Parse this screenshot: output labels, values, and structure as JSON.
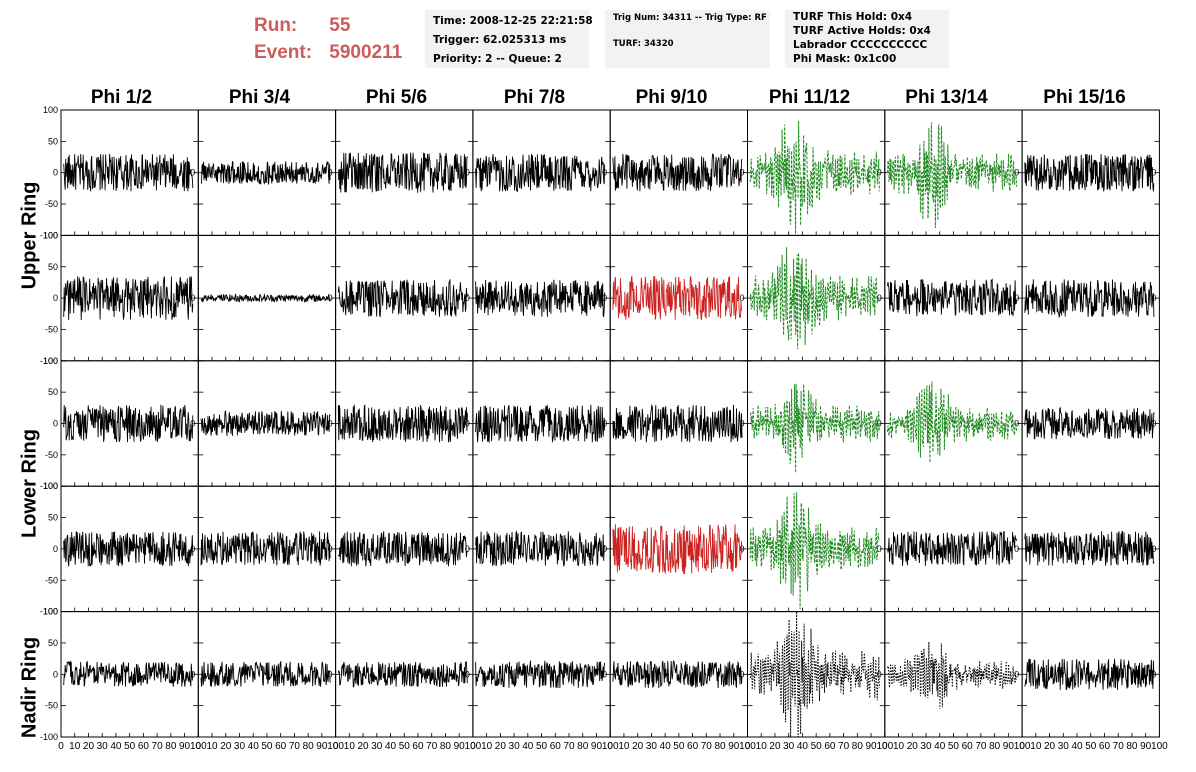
{
  "run_label": "Run:",
  "run_value": "55",
  "event_label": "Event:",
  "event_value": "5900211",
  "info_time": "Time: 2008-12-25 22:21:58",
  "info_trigger": "Trigger: 62.025313 ms",
  "info_priority": "Priority: 2 -- Queue: 2",
  "info_trignum": "Trig Num: 34311 -- Trig Type: RF",
  "info_turf": "TURF: 34320",
  "info_hold": "TURF This Hold: 0x4",
  "info_active_holds": "TURF Active Holds: 0x4",
  "info_labrador": "Labrador CCCCCCCCCC",
  "info_phimask": "Phi Mask: 0x1c00",
  "columns": [
    "Phi 1/2",
    "Phi 3/4",
    "Phi 5/6",
    "Phi 7/8",
    "Phi 9/10",
    "Phi 11/12",
    "Phi 13/14",
    "Phi 15/16"
  ],
  "rows": [
    "Upper Ring",
    "Lower Ring",
    "Nadir Ring"
  ],
  "colors": {
    "default": "#000000",
    "red": "#cc2222",
    "green": "#228b22",
    "title": "#cd5c5c",
    "panel_bg": "#f2f2f2"
  },
  "chart_data": {
    "type": "line",
    "xlim": [
      0,
      100
    ],
    "ylim": [
      -100,
      100
    ],
    "yticks": [
      100,
      50,
      0,
      -50,
      -100
    ],
    "xtick_labels": [
      "0",
      "10",
      "20",
      "30",
      "40",
      "50",
      "60",
      "70",
      "80",
      "90",
      "100"
    ],
    "panels": [
      {
        "row": 0,
        "col": 0,
        "style": "solid",
        "color": "default",
        "amplitude": 30
      },
      {
        "row": 0,
        "col": 1,
        "style": "solid",
        "color": "default",
        "amplitude": 18
      },
      {
        "row": 0,
        "col": 2,
        "style": "solid",
        "color": "default",
        "amplitude": 32
      },
      {
        "row": 0,
        "col": 3,
        "style": "solid",
        "color": "default",
        "amplitude": 30
      },
      {
        "row": 0,
        "col": 4,
        "style": "solid",
        "color": "default",
        "amplitude": 30
      },
      {
        "row": 0,
        "col": 5,
        "style": "dashed",
        "color": "green",
        "amplitude": 70
      },
      {
        "row": 0,
        "col": 6,
        "style": "dashed",
        "color": "green",
        "amplitude": 65
      },
      {
        "row": 0,
        "col": 7,
        "style": "solid",
        "color": "default",
        "amplitude": 30
      },
      {
        "row": 1,
        "col": 0,
        "style": "solid",
        "color": "default",
        "amplitude": 35
      },
      {
        "row": 1,
        "col": 1,
        "style": "solid",
        "color": "default",
        "amplitude": 6
      },
      {
        "row": 1,
        "col": 2,
        "style": "solid",
        "color": "default",
        "amplitude": 30
      },
      {
        "row": 1,
        "col": 3,
        "style": "solid",
        "color": "default",
        "amplitude": 30
      },
      {
        "row": 1,
        "col": 4,
        "style": "solid",
        "color": "red",
        "amplitude": 35
      },
      {
        "row": 1,
        "col": 5,
        "style": "dashed",
        "color": "green",
        "amplitude": 75
      },
      {
        "row": 1,
        "col": 6,
        "style": "solid",
        "color": "default",
        "amplitude": 30
      },
      {
        "row": 1,
        "col": 7,
        "style": "solid",
        "color": "default",
        "amplitude": 30
      },
      {
        "row": 2,
        "col": 0,
        "style": "solid",
        "color": "default",
        "amplitude": 30
      },
      {
        "row": 2,
        "col": 1,
        "style": "solid",
        "color": "default",
        "amplitude": 20
      },
      {
        "row": 2,
        "col": 2,
        "style": "solid",
        "color": "default",
        "amplitude": 30
      },
      {
        "row": 2,
        "col": 3,
        "style": "solid",
        "color": "default",
        "amplitude": 30
      },
      {
        "row": 2,
        "col": 4,
        "style": "solid",
        "color": "default",
        "amplitude": 30
      },
      {
        "row": 2,
        "col": 5,
        "style": "dashed",
        "color": "green",
        "amplitude": 60
      },
      {
        "row": 2,
        "col": 6,
        "style": "dashed",
        "color": "green",
        "amplitude": 55
      },
      {
        "row": 2,
        "col": 7,
        "style": "solid",
        "color": "default",
        "amplitude": 25
      },
      {
        "row": 3,
        "col": 0,
        "style": "solid",
        "color": "default",
        "amplitude": 28
      },
      {
        "row": 3,
        "col": 1,
        "style": "solid",
        "color": "default",
        "amplitude": 28
      },
      {
        "row": 3,
        "col": 2,
        "style": "solid",
        "color": "default",
        "amplitude": 28
      },
      {
        "row": 3,
        "col": 3,
        "style": "solid",
        "color": "default",
        "amplitude": 28
      },
      {
        "row": 3,
        "col": 4,
        "style": "solid",
        "color": "red",
        "amplitude": 40
      },
      {
        "row": 3,
        "col": 5,
        "style": "dashed",
        "color": "green",
        "amplitude": 70
      },
      {
        "row": 3,
        "col": 6,
        "style": "solid",
        "color": "default",
        "amplitude": 28
      },
      {
        "row": 3,
        "col": 7,
        "style": "solid",
        "color": "default",
        "amplitude": 28
      },
      {
        "row": 4,
        "col": 0,
        "style": "solid",
        "color": "default",
        "amplitude": 20
      },
      {
        "row": 4,
        "col": 1,
        "style": "solid",
        "color": "default",
        "amplitude": 20
      },
      {
        "row": 4,
        "col": 2,
        "style": "solid",
        "color": "default",
        "amplitude": 20
      },
      {
        "row": 4,
        "col": 3,
        "style": "solid",
        "color": "default",
        "amplitude": 22
      },
      {
        "row": 4,
        "col": 4,
        "style": "solid",
        "color": "default",
        "amplitude": 22
      },
      {
        "row": 4,
        "col": 5,
        "style": "dotted",
        "color": "default",
        "amplitude": 80
      },
      {
        "row": 4,
        "col": 6,
        "style": "dotted",
        "color": "default",
        "amplitude": 45
      },
      {
        "row": 4,
        "col": 7,
        "style": "solid",
        "color": "default",
        "amplitude": 25
      }
    ]
  }
}
